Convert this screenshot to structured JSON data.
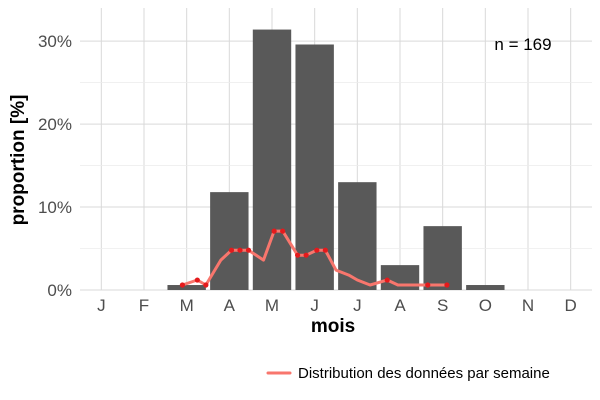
{
  "chart_data": {
    "type": "bar",
    "categories": [
      "J",
      "F",
      "M",
      "A",
      "M",
      "J",
      "J",
      "A",
      "S",
      "O",
      "N",
      "D"
    ],
    "values": [
      0,
      0,
      0.6,
      11.8,
      31.4,
      29.6,
      13.0,
      3.0,
      7.7,
      0.6,
      0,
      0
    ],
    "bar_color": "#595959",
    "ylim": [
      0,
      34
    ],
    "yticks": [
      0,
      10,
      20,
      30
    ],
    "ytick_labels": [
      "0%",
      "10%",
      "20%",
      "30%"
    ],
    "xlabel": "mois",
    "ylabel": "proportion [%]",
    "grid": true,
    "annotation": "n = 169",
    "series": [
      {
        "name": "Distribution des données par semaine",
        "type": "line",
        "color": "#f8766d",
        "marker_color": "#e41a1c",
        "x": [
          2.4,
          2.75,
          2.95,
          3.3,
          3.55,
          3.75,
          3.95,
          4.3,
          4.55,
          4.75,
          5.1,
          5.3,
          5.55,
          5.75,
          6.0,
          6.3,
          6.5,
          6.8,
          7.2,
          7.45,
          7.9,
          8.15,
          8.6
        ],
        "y": [
          0.6,
          1.2,
          0.6,
          3.6,
          4.8,
          4.8,
          4.8,
          3.6,
          7.1,
          7.1,
          4.2,
          4.2,
          4.8,
          4.8,
          2.4,
          1.8,
          1.2,
          0.6,
          1.2,
          0.6,
          0.6,
          0.6,
          0.6
        ],
        "marked": [
          true,
          true,
          true,
          false,
          true,
          true,
          true,
          false,
          true,
          true,
          true,
          true,
          true,
          true,
          false,
          false,
          false,
          false,
          true,
          false,
          false,
          true,
          true
        ]
      }
    ],
    "legend_position": "bottom-right"
  }
}
